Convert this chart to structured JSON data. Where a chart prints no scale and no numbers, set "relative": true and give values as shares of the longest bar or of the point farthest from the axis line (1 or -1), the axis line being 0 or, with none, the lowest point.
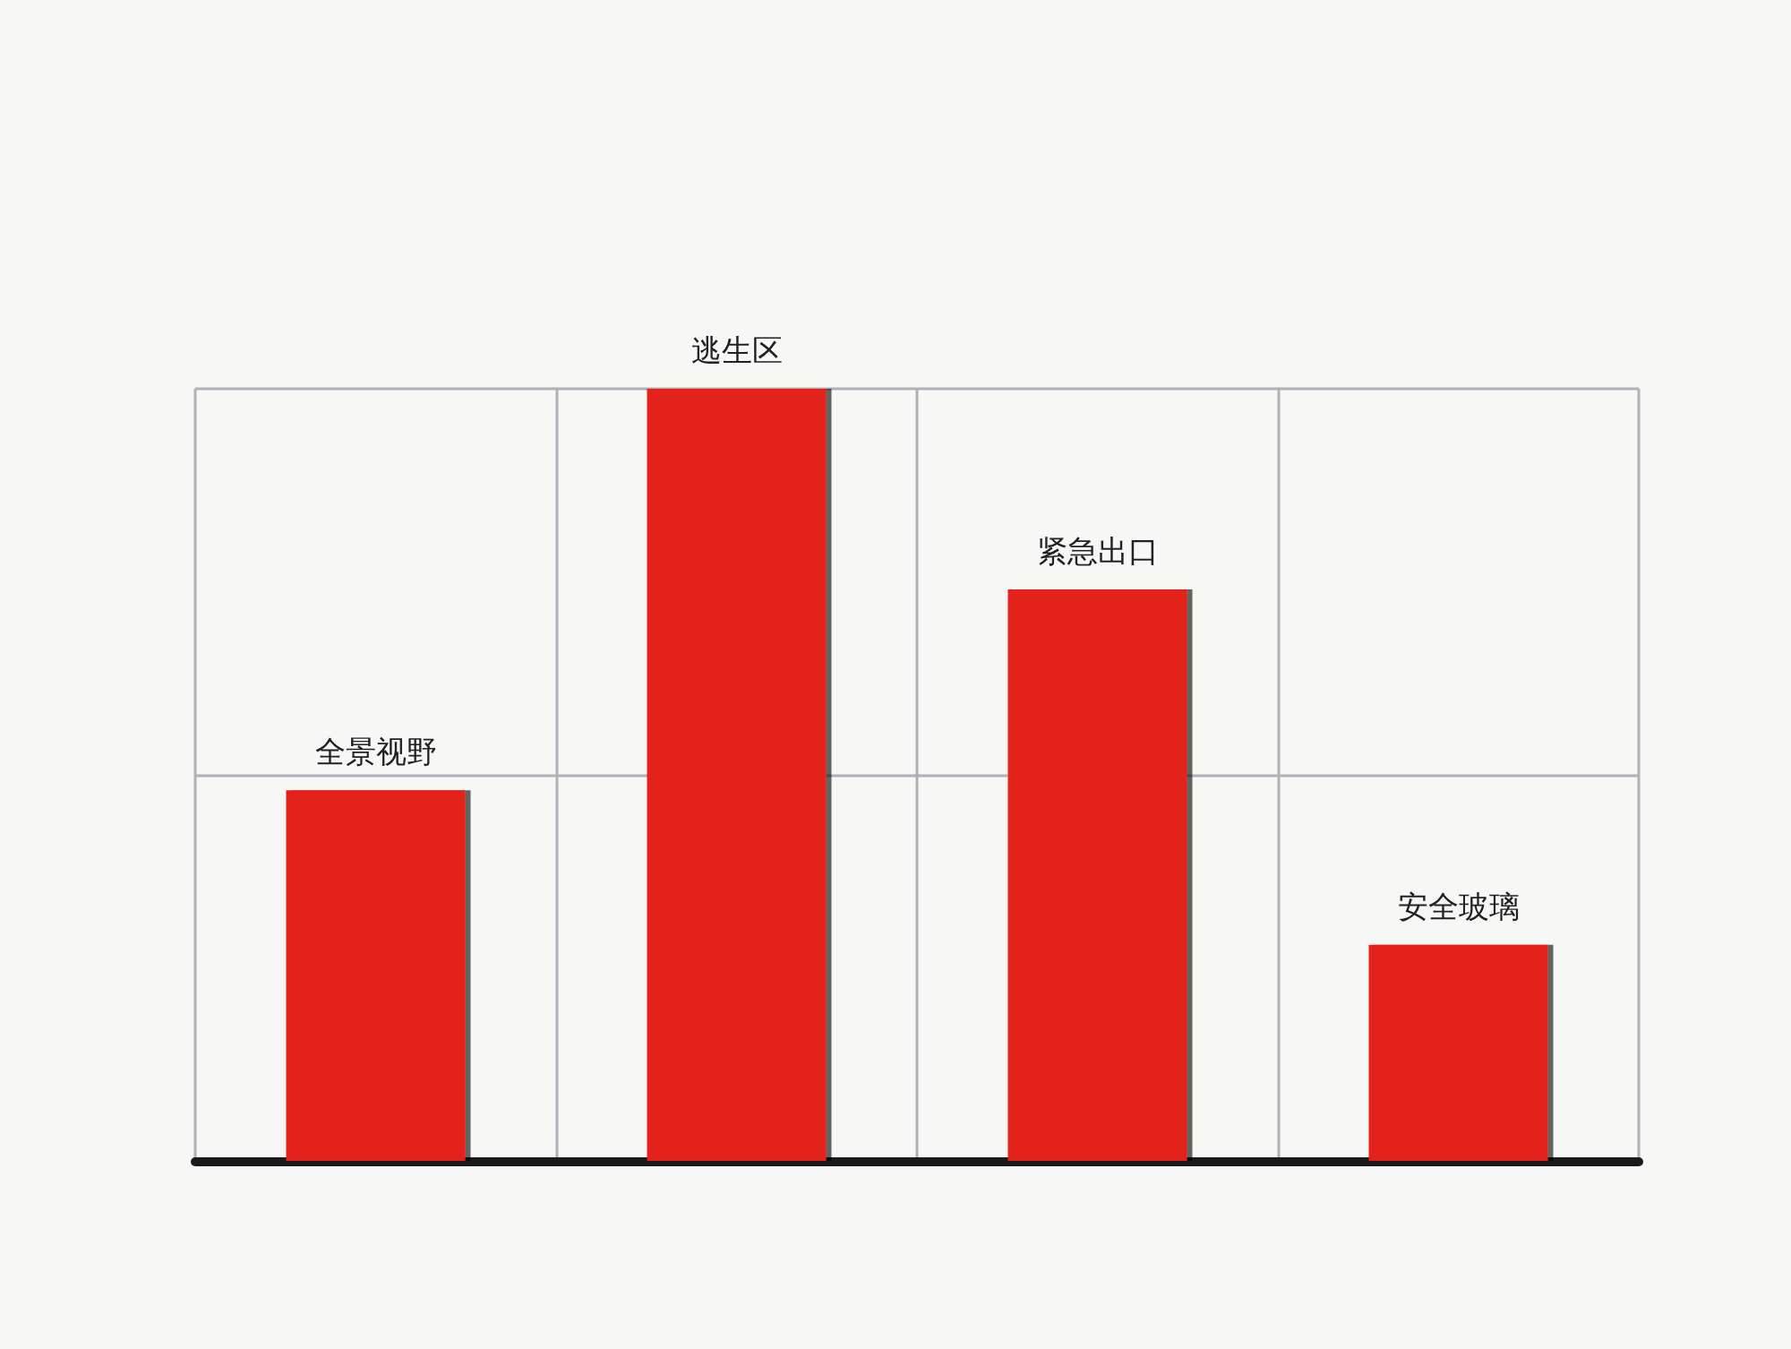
{
  "chart_data": {
    "type": "bar",
    "relative": true,
    "categories": [
      "全景视野",
      "逃生区",
      "紧急出口",
      "安全玻璃"
    ],
    "values": [
      0.48,
      1,
      0.74,
      0.28
    ],
    "color": "#e3231c",
    "grid": true,
    "tick_labels": "x"
  }
}
